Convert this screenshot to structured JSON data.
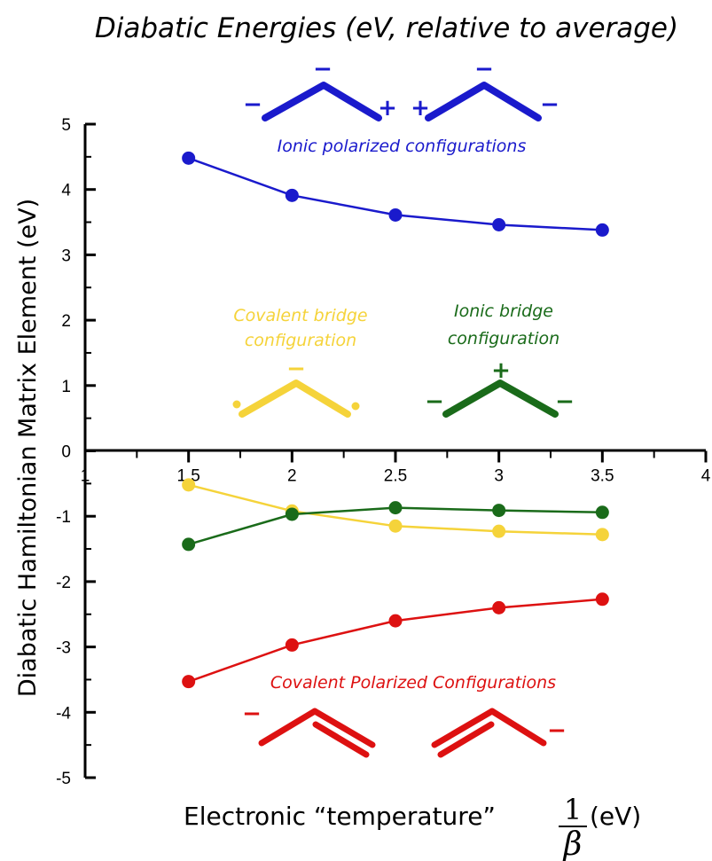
{
  "chart_data": {
    "type": "line",
    "title": "Diabatic Energies (eV, relative to average)",
    "ylabel": "Diabatic Hamiltonian Matrix Element (eV)",
    "xlabel": "Electronic “temperature”",
    "xlabel_math_numerator": "1",
    "xlabel_math_denominator": "β",
    "xlabel_unit": "(eV)",
    "xlim": [
      1,
      4
    ],
    "ylim": [
      -5,
      5
    ],
    "x_ticks": [
      1,
      1.5,
      2,
      2.5,
      3,
      3.5,
      4
    ],
    "x_tick_labels": [
      "1",
      "1.5",
      "2",
      "2.5",
      "3",
      "3.5",
      "4"
    ],
    "y_ticks": [
      -5,
      -4,
      -3,
      -2,
      -1,
      0,
      1,
      2,
      3,
      4,
      5
    ],
    "y_tick_labels": [
      "-5",
      "-4",
      "-3",
      "-2",
      "-1",
      "0",
      "1",
      "2",
      "3",
      "4",
      "5"
    ],
    "x": [
      1.5,
      2,
      2.5,
      3,
      3.5
    ],
    "grid": false,
    "series": [
      {
        "key": "ionic_polarized",
        "color": "#1a1acc",
        "values": [
          4.48,
          3.91,
          3.61,
          3.46,
          3.38
        ]
      },
      {
        "key": "covalent_bridge",
        "color": "#f5d33a",
        "values": [
          -0.52,
          -0.92,
          -1.15,
          -1.23,
          -1.28
        ]
      },
      {
        "key": "ionic_bridge",
        "color": "#1a6b1a",
        "values": [
          -1.43,
          -0.97,
          -0.87,
          -0.91,
          -0.94
        ]
      },
      {
        "key": "covalent_polarized",
        "color": "#dd1111",
        "values": [
          -3.53,
          -2.97,
          -2.6,
          -2.4,
          -2.27
        ]
      }
    ],
    "annotations": {
      "ionic_polarized": "Ionic polarized configurations",
      "covalent_bridge_line1": "Covalent bridge",
      "covalent_bridge_line2": "configuration",
      "ionic_bridge_line1": "Ionic bridge",
      "ionic_bridge_line2": "configuration",
      "covalent_polarized": "Covalent Polarized Configurations"
    },
    "signs": {
      "minus": "−",
      "plus": "+",
      "dot": "•"
    }
  }
}
